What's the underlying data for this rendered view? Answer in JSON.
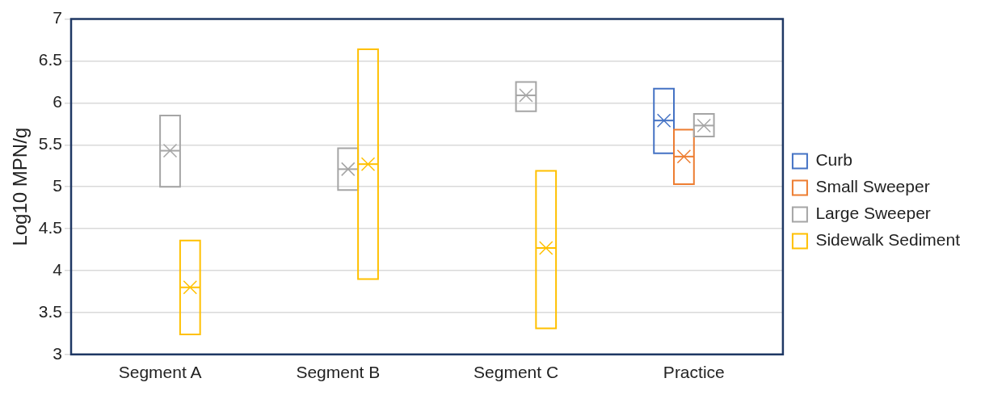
{
  "chart_data": {
    "type": "box",
    "ylabel": "Log10 MPN/g",
    "categories": [
      "Segment A",
      "Segment B",
      "Segment C",
      "Practice"
    ],
    "series": [
      {
        "name": "Curb",
        "color": "#4472c4",
        "boxes": [
          null,
          null,
          null,
          {
            "low": 5.4,
            "q1": 5.4,
            "median": 5.79,
            "q3": 6.17,
            "high": 6.17,
            "mean": 5.79
          }
        ]
      },
      {
        "name": "Small Sweeper",
        "color": "#ed7d31",
        "boxes": [
          null,
          null,
          null,
          {
            "low": 5.03,
            "q1": 5.03,
            "median": 5.36,
            "q3": 5.68,
            "high": 5.68,
            "mean": 5.36
          }
        ]
      },
      {
        "name": "Large Sweeper",
        "color": "#a5a5a5",
        "boxes": [
          {
            "low": 5.0,
            "q1": 5.0,
            "median": 5.43,
            "q3": 5.85,
            "high": 5.85,
            "mean": 5.43
          },
          {
            "low": 4.96,
            "q1": 4.96,
            "median": 5.21,
            "q3": 5.46,
            "high": 5.46,
            "mean": 5.21
          },
          {
            "low": 5.9,
            "q1": 5.9,
            "median": 6.09,
            "q3": 6.25,
            "high": 6.25,
            "mean": 6.09
          },
          {
            "low": 5.6,
            "q1": 5.6,
            "median": 5.73,
            "q3": 5.87,
            "high": 5.87,
            "mean": 5.73
          }
        ]
      },
      {
        "name": "Sidewalk Sediment",
        "color": "#ffc000",
        "boxes": [
          {
            "low": 3.24,
            "q1": 3.24,
            "median": 3.8,
            "q3": 4.36,
            "high": 4.36,
            "mean": 3.8
          },
          {
            "low": 3.9,
            "q1": 3.9,
            "median": 5.27,
            "q3": 6.64,
            "high": 6.64,
            "mean": 5.27
          },
          {
            "low": 3.31,
            "q1": 3.31,
            "median": 4.27,
            "q3": 5.19,
            "high": 5.19,
            "mean": 4.27
          },
          null
        ]
      }
    ],
    "ylim": [
      3,
      7
    ],
    "yticks": [
      3,
      3.5,
      4,
      4.5,
      5,
      5.5,
      6,
      6.5,
      7
    ],
    "grid": "y",
    "legend": "right"
  }
}
